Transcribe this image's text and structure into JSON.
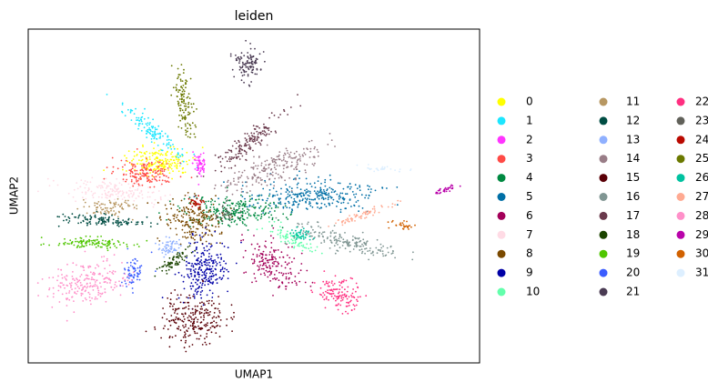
{
  "chart_data": {
    "type": "scatter",
    "title": "leiden",
    "xlabel": "UMAP1",
    "ylabel": "UMAP2",
    "legend": "outside right",
    "series": [
      {
        "name": "0",
        "color": "#FFFF00"
      },
      {
        "name": "1",
        "color": "#1CE6FF"
      },
      {
        "name": "2",
        "color": "#FF34FF"
      },
      {
        "name": "3",
        "color": "#FF4A46"
      },
      {
        "name": "4",
        "color": "#008941"
      },
      {
        "name": "5",
        "color": "#006FA6"
      },
      {
        "name": "6",
        "color": "#A30059"
      },
      {
        "name": "7",
        "color": "#FFDBE5"
      },
      {
        "name": "8",
        "color": "#7A4900"
      },
      {
        "name": "9",
        "color": "#0000A6"
      },
      {
        "name": "10",
        "color": "#63FFAC"
      },
      {
        "name": "11",
        "color": "#B79762"
      },
      {
        "name": "12",
        "color": "#004D43"
      },
      {
        "name": "13",
        "color": "#8FB0FF"
      },
      {
        "name": "14",
        "color": "#997D87"
      },
      {
        "name": "15",
        "color": "#5A0007"
      },
      {
        "name": "16",
        "color": "#809693"
      },
      {
        "name": "17",
        "color": "#6A3A4C"
      },
      {
        "name": "18",
        "color": "#1B4400"
      },
      {
        "name": "19",
        "color": "#4FC601"
      },
      {
        "name": "20",
        "color": "#3B5DFF"
      },
      {
        "name": "21",
        "color": "#4A3B53"
      },
      {
        "name": "22",
        "color": "#FF2F80"
      },
      {
        "name": "23",
        "color": "#61615A"
      },
      {
        "name": "24",
        "color": "#BA0900"
      },
      {
        "name": "25",
        "color": "#6B7900"
      },
      {
        "name": "26",
        "color": "#00C2A0"
      },
      {
        "name": "27",
        "color": "#FFAA92"
      },
      {
        "name": "28",
        "color": "#FF90C9"
      },
      {
        "name": "29",
        "color": "#B903AA"
      },
      {
        "name": "30",
        "color": "#D16100"
      },
      {
        "name": "31",
        "color": "#DDEFFF"
      }
    ]
  }
}
